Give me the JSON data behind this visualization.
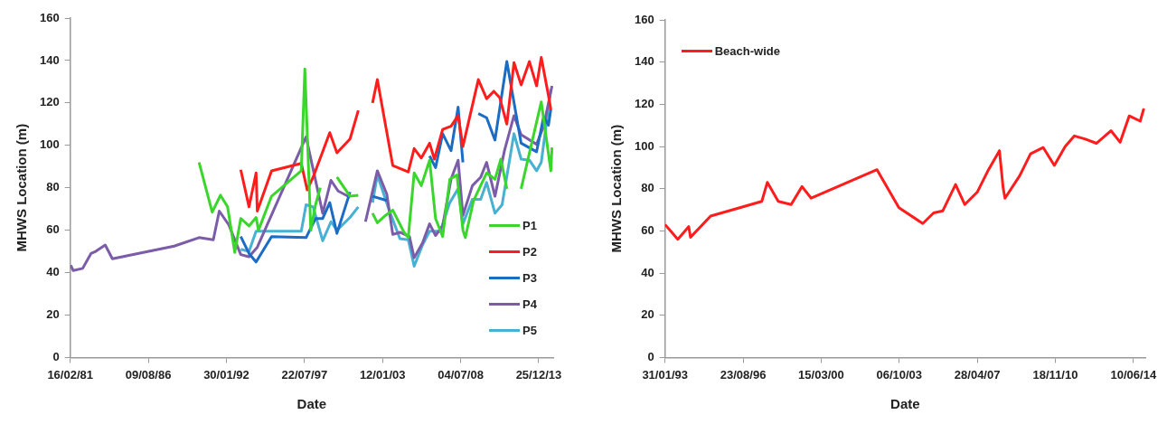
{
  "chart_data": [
    {
      "type": "line",
      "xlabel": "Date",
      "ylabel": "MHWS Location (m)",
      "xlim": [
        "1981-02-16",
        "2015-01-01"
      ],
      "xticks": [
        {
          "value": "1981-02-16",
          "label": "16/02/81"
        },
        {
          "value": "1986-08-09",
          "label": "09/08/86"
        },
        {
          "value": "1992-01-30",
          "label": "30/01/92"
        },
        {
          "value": "1997-07-22",
          "label": "22/07/97"
        },
        {
          "value": "2003-01-12",
          "label": "12/01/03"
        },
        {
          "value": "2008-07-04",
          "label": "04/07/08"
        },
        {
          "value": "2013-12-25",
          "label": "25/12/13"
        }
      ],
      "ylim": [
        0,
        160
      ],
      "yticks": [
        0,
        20,
        40,
        60,
        80,
        100,
        120,
        140,
        160
      ],
      "grid": false,
      "legend": "bottom right",
      "series": [
        {
          "name": "P1",
          "color": "#3ad62c",
          "x": [
            "1990-03",
            "1991-02",
            "1991-09",
            "1992-03",
            "1992-09",
            "1993-02",
            "1993-09",
            "1994-03",
            "1994-05",
            "1995-04",
            "1997-05",
            "1997-08",
            "1998-01",
            "1998-05",
            "1998-09",
            "1999-01",
            "1999-11",
            "2000-10",
            "2001-05",
            "2001-12",
            "2002-05",
            "2002-09",
            "2003-04",
            "2003-10",
            "2004-07",
            "2004-11",
            "2005-04",
            "2005-10",
            "2006-05",
            "2006-10",
            "2007-04",
            "2007-10",
            "2008-04",
            "2008-09",
            "2008-11",
            "2009-06",
            "2010-05",
            "2010-12",
            "2011-05",
            "2011-10",
            "2012-03",
            "2012-10",
            "2014-03",
            "2014-11",
            "2014-12"
          ],
          "values": [
            92,
            68.5,
            76.5,
            71,
            49.5,
            65.5,
            62,
            66,
            60,
            76,
            88,
            136,
            60,
            72,
            80,
            null,
            85,
            76,
            76.5,
            null,
            68,
            63.5,
            67,
            69.5,
            59.5,
            56.5,
            87,
            81,
            93,
            65.5,
            57,
            84,
            86,
            60,
            56.5,
            74,
            87,
            84,
            93.5,
            79.5,
            null,
            79.5,
            120.5,
            88,
            99
          ]
        },
        {
          "name": "P2",
          "color": "#ff1c1c",
          "x": [
            "1993-02",
            "1993-09",
            "1994-03",
            "1994-04",
            "1995-04",
            "1997-05",
            "1997-10",
            "1998-03",
            "1998-11",
            "1999-05",
            "1999-11",
            "2000-10",
            "2001-05",
            "2001-12",
            "2002-05",
            "2002-09",
            "2003-10",
            "2004-11",
            "2005-04",
            "2005-10",
            "2006-05",
            "2006-09",
            "2007-04",
            "2007-11",
            "2008-05",
            "2008-09",
            "2009-10",
            "2010-05",
            "2010-11",
            "2011-04",
            "2011-10",
            "2012-04",
            "2012-10",
            "2013-05",
            "2013-11",
            "2014-03",
            "2014-09",
            "2014-11"
          ],
          "values": [
            88.5,
            71,
            87,
            69,
            88,
            91.5,
            79,
            85,
            97,
            106,
            96.5,
            103,
            116.5,
            null,
            120,
            131,
            90.5,
            87.5,
            98.5,
            94,
            101,
            93.5,
            107.5,
            109,
            114,
            99.5,
            131,
            122,
            125.5,
            122.5,
            110,
            139,
            128.5,
            139.5,
            128,
            141.5,
            123.5,
            117
          ]
        },
        {
          "name": "P3",
          "color": "#1a6cc4",
          "x": [
            "1993-02",
            "1993-09",
            "1994-03",
            "1995-04",
            "1997-09",
            "1998-05",
            "1998-11",
            "1999-05",
            "1999-11",
            "2000-10",
            "2001-06",
            "2002-05",
            "2003-05",
            "2004-06",
            "2006-05",
            "2006-10",
            "2007-04",
            "2007-11",
            "2008-05",
            "2008-09",
            "2009-03",
            "2009-10",
            "2010-05",
            "2010-12",
            "2011-10",
            "2012-10",
            "2013-11",
            "2014-05",
            "2014-09",
            "2014-11"
          ],
          "values": [
            57,
            49,
            45,
            57,
            56.5,
            65.5,
            65.5,
            73,
            58.5,
            78,
            null,
            76,
            74,
            null,
            95,
            89.5,
            105.5,
            97.5,
            118,
            92,
            null,
            115,
            113,
            102.5,
            139.5,
            101,
            97,
            113.5,
            109.5,
            117
          ]
        },
        {
          "name": "P4",
          "color": "#7b5ca8",
          "x": [
            "1981-03",
            "1981-05",
            "1982-01",
            "1982-08",
            "1982-12",
            "1983-08",
            "1984-02",
            "1988-06",
            "1990-03",
            "1991-03",
            "1991-08",
            "1992-04",
            "1993-02",
            "1993-09",
            "1994-04",
            "1997-09",
            "1998-11",
            "1999-06",
            "1999-12",
            "2000-10",
            "2001-04",
            "2001-11",
            "2002-09",
            "2003-05",
            "2003-10",
            "2004-04",
            "2004-12",
            "2005-04",
            "2005-11",
            "2006-05",
            "2006-10",
            "2007-04",
            "2007-11",
            "2008-05",
            "2008-09",
            "2009-05",
            "2009-12",
            "2010-05",
            "2010-12",
            "2011-08",
            "2012-04",
            "2012-10",
            "2013-11",
            "2014-05",
            "2014-12"
          ],
          "values": [
            43.5,
            41,
            42,
            49,
            50,
            53,
            46.5,
            52.5,
            56.5,
            55.5,
            69,
            62.5,
            48.5,
            47.5,
            52,
            104,
            68,
            83.5,
            78.5,
            75.5,
            null,
            64,
            88,
            77,
            58,
            59,
            57,
            47,
            54,
            63,
            57.5,
            62,
            84,
            93,
            67,
            81,
            85,
            92,
            76,
            97.5,
            114,
            105,
            100.5,
            109,
            128
          ]
        },
        {
          "name": "P5",
          "color": "#48b0d2",
          "x": [
            "1993-02",
            "1993-09",
            "1994-03",
            "1997-05",
            "1997-09",
            "1998-03",
            "1998-11",
            "1999-06",
            "1999-11",
            "2000-10",
            "2001-05",
            "2001-12",
            "2002-05",
            "2002-09",
            "2003-06",
            "2004-04",
            "2004-11",
            "2005-04",
            "2005-11",
            "2006-05",
            "2007-02",
            "2007-10",
            "2008-05",
            "2008-09",
            "2009-05",
            "2009-12",
            "2010-05",
            "2010-12",
            "2011-06",
            "2012-04",
            "2012-10",
            "2013-05",
            "2013-11",
            "2014-03",
            "2014-11"
          ],
          "values": [
            51,
            50,
            59.5,
            59.5,
            72,
            71,
            55,
            64,
            60,
            66,
            71,
            null,
            73,
            86,
            71,
            56,
            55.5,
            43,
            53,
            59.5,
            59.5,
            73,
            79.5,
            63,
            74.5,
            74.5,
            82.5,
            68,
            72,
            105.5,
            93.5,
            93,
            88,
            92,
            126.5
          ]
        }
      ]
    },
    {
      "type": "line",
      "xlabel": "Date",
      "ylabel": "MHWS Location (m)",
      "xlim": [
        "1993-01-31",
        "2014-12-25"
      ],
      "xticks": [
        {
          "value": "1993-01-31",
          "label": "31/01/93"
        },
        {
          "value": "1996-08-23",
          "label": "23/08/96"
        },
        {
          "value": "2000-03-15",
          "label": "15/03/00"
        },
        {
          "value": "2003-10-06",
          "label": "06/10/03"
        },
        {
          "value": "2007-04-28",
          "label": "28/04/07"
        },
        {
          "value": "2010-11-18",
          "label": "18/11/10"
        },
        {
          "value": "2014-06-10",
          "label": "10/06/14"
        }
      ],
      "ylim": [
        0,
        160
      ],
      "yticks": [
        0,
        20,
        40,
        60,
        80,
        100,
        120,
        140,
        160
      ],
      "grid": false,
      "legend": "top left",
      "series": [
        {
          "name": "Beach-wide",
          "color": "#ff1c1c",
          "x": [
            "1993-02",
            "1993-09",
            "1994-03",
            "1994-04",
            "1995-03",
            "1997-07",
            "1997-10",
            "1998-04",
            "1998-11",
            "1999-05",
            "1999-10",
            "2002-10",
            "2003-10",
            "2004-11",
            "2005-05",
            "2005-10",
            "2006-05",
            "2006-10",
            "2007-05",
            "2007-11",
            "2008-05",
            "2008-07",
            "2008-08",
            "2009-04",
            "2009-10",
            "2010-05",
            "2010-11",
            "2011-05",
            "2011-10",
            "2012-04",
            "2012-10",
            "2013-06",
            "2013-11",
            "2014-04",
            "2014-10",
            "2014-12"
          ],
          "values": [
            63,
            56,
            62,
            57,
            67,
            74,
            83,
            74,
            72.5,
            81,
            75.5,
            89,
            71,
            63.5,
            68.5,
            69.5,
            82,
            72.5,
            78.5,
            89,
            98,
            80.5,
            75.5,
            86,
            96.5,
            99.5,
            91,
            100,
            105,
            103.5,
            101.5,
            107.5,
            102,
            114.5,
            112,
            118
          ]
        }
      ]
    }
  ]
}
